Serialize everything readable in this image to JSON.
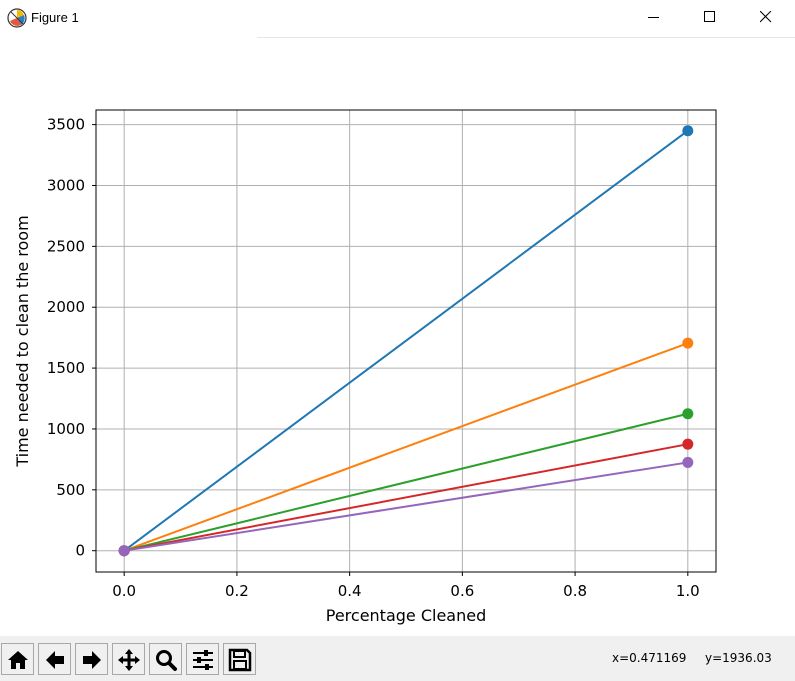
{
  "window": {
    "title": "Figure 1",
    "icon": "matplotlib-icon"
  },
  "window_controls": [
    {
      "name": "minimize-button",
      "icon": "minimize-icon"
    },
    {
      "name": "maximize-button",
      "icon": "maximize-icon"
    },
    {
      "name": "close-button",
      "icon": "close-icon"
    }
  ],
  "toolbar": {
    "buttons": [
      {
        "name": "home-button",
        "icon": "home-icon"
      },
      {
        "name": "back-button",
        "icon": "back-arrow-icon"
      },
      {
        "name": "forward-button",
        "icon": "forward-arrow-icon"
      },
      {
        "name": "pan-button",
        "icon": "move-icon"
      },
      {
        "name": "zoom-button",
        "icon": "magnifier-icon"
      },
      {
        "name": "configure-subplots-button",
        "icon": "sliders-icon"
      },
      {
        "name": "save-button",
        "icon": "floppy-disk-icon"
      }
    ],
    "coord_x": "x=0.471169",
    "coord_y": "y=1936.03"
  },
  "chart_data": {
    "type": "line",
    "xlabel": "Percentage Cleaned",
    "ylabel": "Time needed to clean the room",
    "xlim": [
      -0.05,
      1.05
    ],
    "ylim": [
      -175,
      3620
    ],
    "xticks": [
      0.0,
      0.2,
      0.4,
      0.6,
      0.8,
      1.0
    ],
    "xtick_labels": [
      "0.0",
      "0.2",
      "0.4",
      "0.6",
      "0.8",
      "1.0"
    ],
    "yticks": [
      0,
      500,
      1000,
      1500,
      2000,
      2500,
      3000,
      3500
    ],
    "ytick_labels": [
      "0",
      "500",
      "1000",
      "1500",
      "2000",
      "2500",
      "3000",
      "3500"
    ],
    "grid": true,
    "markers": "circle",
    "series": [
      {
        "color": "#1f77b4",
        "x": [
          0.0,
          1.0
        ],
        "y": [
          0,
          3450
        ]
      },
      {
        "color": "#ff7f0e",
        "x": [
          0.0,
          1.0
        ],
        "y": [
          0,
          1705
        ]
      },
      {
        "color": "#2ca02c",
        "x": [
          0.0,
          1.0
        ],
        "y": [
          0,
          1125
        ]
      },
      {
        "color": "#d62728",
        "x": [
          0.0,
          1.0
        ],
        "y": [
          0,
          875
        ]
      },
      {
        "color": "#9467bd",
        "x": [
          0.0,
          1.0
        ],
        "y": [
          0,
          725
        ]
      }
    ]
  }
}
